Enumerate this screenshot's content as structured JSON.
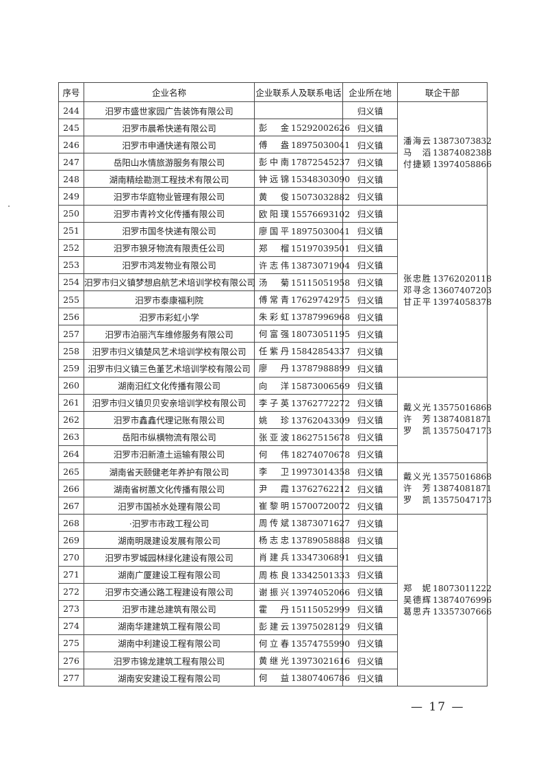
{
  "headers": {
    "no": "序号",
    "name": "企业名称",
    "contact": "企业联系人及联系电话",
    "location": "企业所在地",
    "cadre": "联企干部"
  },
  "rows": [
    {
      "no": "244",
      "name": "汨罗市盛世家园广告装饰有限公司",
      "person": "",
      "phone": "",
      "location": "归义镇"
    },
    {
      "no": "245",
      "name": "汨罗市晨希快递有限公司",
      "person": "彭金",
      "phone": "15292002626",
      "location": "归义镇"
    },
    {
      "no": "246",
      "name": "汨罗市申通快递有限公司",
      "person": "傅盎",
      "phone": "18975030041",
      "location": "归义镇"
    },
    {
      "no": "247",
      "name": "岳阳山水情旅游服务有限公司",
      "person": "彭中南",
      "phone": "17872545237",
      "location": "归义镇"
    },
    {
      "no": "248",
      "name": "湖南精绘勘测工程技术有限公司",
      "person": "钟远锦",
      "phone": "15348303090",
      "location": "归义镇"
    },
    {
      "no": "249",
      "name": "汨罗市华庭物业管理有限公司",
      "person": "黄俊",
      "phone": "15073032882",
      "location": "归义镇"
    },
    {
      "no": "250",
      "name": "汨罗市青衿文化传播有限公司",
      "person": "欧阳璞",
      "phone": "15576693102",
      "location": "归义镇"
    },
    {
      "no": "251",
      "name": "汨罗市国冬快递有限公司",
      "person": "廖国平",
      "phone": "18975030041",
      "location": "归义镇"
    },
    {
      "no": "252",
      "name": "汨罗市狼牙物流有限责任公司",
      "person": "郑榴",
      "phone": "15197039501",
      "location": "归义镇"
    },
    {
      "no": "253",
      "name": "汨罗市鸿发物业有限公司",
      "person": "许志伟",
      "phone": "13873071904",
      "location": "归义镇"
    },
    {
      "no": "254",
      "name": "汨罗市归义镇梦想启航艺术培训学校有限公司",
      "person": "汤菊",
      "phone": "15115051958",
      "location": "归义镇"
    },
    {
      "no": "255",
      "name": "汨罗市泰康福利院",
      "person": "傅常青",
      "phone": "17629742975",
      "location": "归义镇"
    },
    {
      "no": "256",
      "name": "汨罗市彩虹小学",
      "person": "朱彩虹",
      "phone": "13787996968",
      "location": "归义镇"
    },
    {
      "no": "257",
      "name": "汨罗市泊丽汽车维修服务有限公司",
      "person": "何富强",
      "phone": "18073051195",
      "location": "归义镇"
    },
    {
      "no": "258",
      "name": "汨罗市归义镇楚风艺术培训学校有限公司",
      "person": "任紫丹",
      "phone": "15842854337",
      "location": "归义镇"
    },
    {
      "no": "259",
      "name": "汨罗市归义镇三色堇艺术培训学校有限公司",
      "person": "廖丹",
      "phone": "13787988899",
      "location": "归义镇"
    },
    {
      "no": "260",
      "name": "湖南汨红文化传播有限公司",
      "person": "向洋",
      "phone": "15873006569",
      "location": "归义镇"
    },
    {
      "no": "261",
      "name": "汨罗市归义镇贝贝安亲培训学校有限公司",
      "person": "李子英",
      "phone": "13762772272",
      "location": "归义镇"
    },
    {
      "no": "262",
      "name": "汨罗市鑫鑫代理记账有限公司",
      "person": "姚珍",
      "phone": "13762043309",
      "location": "归义镇"
    },
    {
      "no": "263",
      "name": "岳阳市纵横物流有限公司",
      "person": "张亚波",
      "phone": "18627515678",
      "location": "归义镇"
    },
    {
      "no": "264",
      "name": "汨罗市汨新渣土运输有限公司",
      "person": "何伟",
      "phone": "18274070678",
      "location": "归义镇"
    },
    {
      "no": "265",
      "name": "湖南省天颐健老年养护有限公司",
      "person": "李卫",
      "phone": "19973014358",
      "location": "归义镇"
    },
    {
      "no": "266",
      "name": "湖南省树蕙文化传播有限公司",
      "person": "尹霞",
      "phone": "13762762212",
      "location": "归义镇"
    },
    {
      "no": "267",
      "name": "汨罗市国祯水处理有限公司",
      "person": "崔黎明",
      "phone": "15700720072",
      "location": "归义镇"
    },
    {
      "no": "268",
      "name": "·汨罗市市政工程公司",
      "person": "周传斌",
      "phone": "13873071627",
      "location": "归义镇"
    },
    {
      "no": "269",
      "name": "湖南明晟建设发展有限公司",
      "person": "杨志忠",
      "phone": "13789058888",
      "location": "归义镇"
    },
    {
      "no": "270",
      "name": "汨罗市罗城园林绿化建设有限公司",
      "person": "肖建兵",
      "phone": "13347306891",
      "location": "归义镇"
    },
    {
      "no": "271",
      "name": "湖南广厦建设工程有限公司",
      "person": "周栋良",
      "phone": "13342501333",
      "location": "归义镇"
    },
    {
      "no": "272",
      "name": "汨罗市交通公路工程建设有限公司",
      "person": "谢振兴",
      "phone": "13974052066",
      "location": "归义镇"
    },
    {
      "no": "273",
      "name": "汨罗市建总建筑有限公司",
      "person": "霍丹",
      "phone": "15115052999",
      "location": "归义镇"
    },
    {
      "no": "274",
      "name": "湖南华建建筑工程有限公司",
      "person": "彭建云",
      "phone": "13975028129",
      "location": "归义镇"
    },
    {
      "no": "275",
      "name": "湖南中利建设工程有限公司",
      "person": "何立春",
      "phone": "13574755990",
      "location": "归义镇"
    },
    {
      "no": "276",
      "name": "汨罗市锦龙建筑工程有限公司",
      "person": "黄继光",
      "phone": "13973021616",
      "location": "归义镇"
    },
    {
      "no": "277",
      "name": "湖南安安建设工程有限公司",
      "person": "何益",
      "phone": "13807406786",
      "location": "归义镇"
    }
  ],
  "cadre_groups": [
    {
      "first_row": "244",
      "span": 6,
      "members": [
        {
          "name": "潘海云",
          "phone": "13873073832"
        },
        {
          "name": "马滔",
          "phone": "13874082388"
        },
        {
          "name": "付捷颖",
          "phone": "13974058866"
        }
      ]
    },
    {
      "first_row": "250",
      "span": 10,
      "members": [
        {
          "name": "张忠胜",
          "phone": "13762020118"
        },
        {
          "name": "邓寻念",
          "phone": "13607407203"
        },
        {
          "name": "甘正平",
          "phone": "13974058378"
        }
      ]
    },
    {
      "first_row": "260",
      "span": 5,
      "members": [
        {
          "name": "戴义光",
          "phone": "13575016868"
        },
        {
          "name": "许芳",
          "phone": "13874081871"
        },
        {
          "name": "罗凯",
          "phone": "13575047173"
        }
      ]
    },
    {
      "first_row": "265",
      "span": 3,
      "members": [
        {
          "name": "戴义光",
          "phone": "13575016868"
        },
        {
          "name": "许芳",
          "phone": "13874081871"
        },
        {
          "name": "罗凯",
          "phone": "13575047173"
        }
      ]
    },
    {
      "first_row": "268",
      "span": 10,
      "members": [
        {
          "name": "郑妮",
          "phone": "18073011222"
        },
        {
          "name": "吴德辉",
          "phone": "13874076996"
        },
        {
          "name": "葛思卉",
          "phone": "13357307666"
        }
      ]
    }
  ],
  "page_number": "— 17 —"
}
